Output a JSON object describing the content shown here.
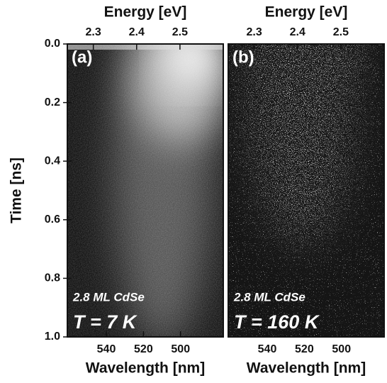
{
  "chart_data": [
    {
      "type": "image",
      "panel_label": "(a)",
      "annotations": [
        "2.8 ML CdSe",
        "T = 7 K"
      ],
      "x2label": "Energy [eV]",
      "x2lim": [
        2.24,
        2.6
      ],
      "x2ticks": [
        2.3,
        2.4,
        2.5
      ],
      "xlabel": "Wavelength [nm]",
      "xlim": [
        561,
        477
      ],
      "xticks": [
        540,
        520,
        500
      ],
      "ylabel": "Time [ns]",
      "ylim": [
        0,
        1
      ],
      "y_reversed": true,
      "yticks": [
        {
          "value": 0,
          "label": "0.0"
        },
        0.2,
        0.4,
        0.6,
        0.8,
        {
          "value": 1,
          "label": "1.0"
        }
      ]
    },
    {
      "type": "image",
      "panel_label": "(b)",
      "annotations": [
        "2.8 ML CdSe",
        "T = 160 K"
      ],
      "x2label": "Energy [eV]",
      "x2lim": [
        2.24,
        2.6
      ],
      "x2ticks": [
        2.3,
        2.4,
        2.5
      ],
      "xlabel": "Wavelength [nm]",
      "xlim": [
        561,
        477
      ],
      "xticks": [
        540,
        520,
        500
      ],
      "ylim": [
        0,
        1
      ],
      "y_reversed": true
    }
  ]
}
